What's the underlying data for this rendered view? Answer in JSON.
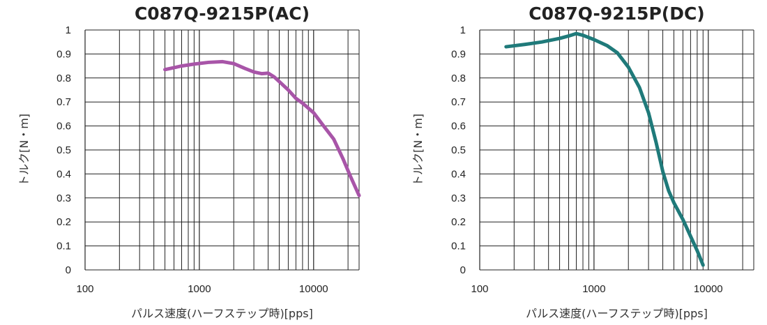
{
  "chart_data": [
    {
      "type": "line",
      "title": "C087Q-9215P(AC)",
      "xlabel": "パルス速度(ハーフステップ時)[pps]",
      "ylabel": "トルク[N・m]",
      "x_scale": "log",
      "xlim": [
        100,
        25000
      ],
      "ylim": [
        0,
        1
      ],
      "x_ticks": [
        "100",
        "1000",
        "10000"
      ],
      "y_ticks": [
        "0",
        "0.1",
        "0.2",
        "0.3",
        "0.4",
        "0.5",
        "0.6",
        "0.7",
        "0.8",
        "0.9",
        "1"
      ],
      "grid": true,
      "series_color": "#a855a8",
      "series": [
        {
          "x": [
            500,
            700,
            900,
            1200,
            1600,
            2000,
            2500,
            3000,
            3500,
            4000,
            4500,
            5000,
            6000,
            7000,
            8000,
            10000,
            12000,
            15000,
            18000,
            21000,
            25000
          ],
          "y": [
            0.835,
            0.85,
            0.858,
            0.865,
            0.868,
            0.86,
            0.84,
            0.825,
            0.818,
            0.82,
            0.805,
            0.785,
            0.75,
            0.715,
            0.695,
            0.655,
            0.605,
            0.545,
            0.465,
            0.39,
            0.31
          ]
        }
      ]
    },
    {
      "type": "line",
      "title": "C087Q-9215P(DC)",
      "xlabel": "パルス速度(ハーフステップ時)[pps]",
      "ylabel": "トルク[N・m]",
      "x_scale": "log",
      "xlim": [
        100,
        25000
      ],
      "ylim": [
        0,
        1
      ],
      "x_ticks": [
        "100",
        "1000",
        "10000"
      ],
      "y_ticks": [
        "0",
        "0.1",
        "0.2",
        "0.3",
        "0.4",
        "0.5",
        "0.6",
        "0.7",
        "0.8",
        "0.9",
        "1"
      ],
      "grid": true,
      "series_color": "#1f7a7a",
      "series": [
        {
          "x": [
            170,
            250,
            350,
            500,
            600,
            700,
            800,
            1000,
            1300,
            1600,
            2000,
            2500,
            3000,
            3500,
            4000,
            4500,
            5000,
            6000,
            7000,
            8000,
            9000
          ],
          "y": [
            0.93,
            0.94,
            0.95,
            0.965,
            0.975,
            0.985,
            0.978,
            0.96,
            0.935,
            0.905,
            0.845,
            0.76,
            0.655,
            0.53,
            0.41,
            0.33,
            0.28,
            0.21,
            0.14,
            0.08,
            0.02
          ]
        }
      ]
    }
  ]
}
